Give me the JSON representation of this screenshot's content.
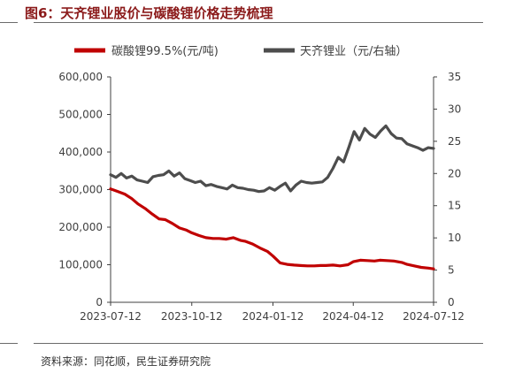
{
  "header": {
    "title": "图6：天齐锂业股价与碳酸锂价格走势梳理"
  },
  "footer": {
    "source": "资料来源：同花顺，民生证券研究院"
  },
  "colors": {
    "lithium_carbonate": "#C00000",
    "tianqi": "#4D4D4D",
    "title": "#8B1A1A"
  },
  "chart_data": {
    "type": "line",
    "title": "",
    "legend_position": "top",
    "grid": false,
    "x_ticks": [
      "2023-07-12",
      "2023-10-12",
      "2024-01-12",
      "2024-04-12",
      "2024-07-12"
    ],
    "xlim": [
      "2023-07-12",
      "2024-07-12"
    ],
    "y_left": {
      "lim": [
        0,
        600000
      ],
      "ticks": [
        "0",
        "100,000",
        "200,000",
        "300,000",
        "400,000",
        "500,000",
        "600,000"
      ]
    },
    "y_right": {
      "lim": [
        0,
        35
      ],
      "ticks": [
        "0",
        "5",
        "10",
        "15",
        "20",
        "25",
        "30",
        "35"
      ]
    },
    "series": [
      {
        "name": "碳酸锂99.5%(元/吨)",
        "axis": "left",
        "points": [
          [
            "2023-07-12",
            302000
          ],
          [
            "2023-07-20",
            295000
          ],
          [
            "2023-07-28",
            288000
          ],
          [
            "2023-08-05",
            276000
          ],
          [
            "2023-08-12",
            262000
          ],
          [
            "2023-08-20",
            250000
          ],
          [
            "2023-08-28",
            235000
          ],
          [
            "2023-09-05",
            222000
          ],
          [
            "2023-09-12",
            220000
          ],
          [
            "2023-09-20",
            210000
          ],
          [
            "2023-09-28",
            198000
          ],
          [
            "2023-10-06",
            192000
          ],
          [
            "2023-10-12",
            185000
          ],
          [
            "2023-10-20",
            178000
          ],
          [
            "2023-10-28",
            172000
          ],
          [
            "2023-11-05",
            170000
          ],
          [
            "2023-11-12",
            170000
          ],
          [
            "2023-11-20",
            168000
          ],
          [
            "2023-11-28",
            172000
          ],
          [
            "2023-12-06",
            165000
          ],
          [
            "2023-12-12",
            162000
          ],
          [
            "2023-12-20",
            155000
          ],
          [
            "2023-12-28",
            145000
          ],
          [
            "2024-01-06",
            135000
          ],
          [
            "2024-01-12",
            123000
          ],
          [
            "2024-01-20",
            105000
          ],
          [
            "2024-01-28",
            101000
          ],
          [
            "2024-02-05",
            99000
          ],
          [
            "2024-02-12",
            98000
          ],
          [
            "2024-02-20",
            97000
          ],
          [
            "2024-02-28",
            97000
          ],
          [
            "2024-03-06",
            98000
          ],
          [
            "2024-03-12",
            98000
          ],
          [
            "2024-03-20",
            99000
          ],
          [
            "2024-03-28",
            97000
          ],
          [
            "2024-04-06",
            100000
          ],
          [
            "2024-04-12",
            108000
          ],
          [
            "2024-04-20",
            112000
          ],
          [
            "2024-04-28",
            111000
          ],
          [
            "2024-05-06",
            110000
          ],
          [
            "2024-05-12",
            112000
          ],
          [
            "2024-05-20",
            111000
          ],
          [
            "2024-05-28",
            110000
          ],
          [
            "2024-06-06",
            106000
          ],
          [
            "2024-06-12",
            101000
          ],
          [
            "2024-06-20",
            97000
          ],
          [
            "2024-06-28",
            93000
          ],
          [
            "2024-07-06",
            91000
          ],
          [
            "2024-07-12",
            89000
          ]
        ]
      },
      {
        "name": "天齐锂业（元/右轴）",
        "axis": "right",
        "points": [
          [
            "2023-07-12",
            19.8
          ],
          [
            "2023-07-18",
            19.4
          ],
          [
            "2023-07-24",
            20.0
          ],
          [
            "2023-07-30",
            19.3
          ],
          [
            "2023-08-05",
            19.6
          ],
          [
            "2023-08-11",
            19.0
          ],
          [
            "2023-08-17",
            18.8
          ],
          [
            "2023-08-23",
            18.6
          ],
          [
            "2023-08-29",
            19.5
          ],
          [
            "2023-09-04",
            19.7
          ],
          [
            "2023-09-10",
            19.8
          ],
          [
            "2023-09-16",
            20.4
          ],
          [
            "2023-09-22",
            19.6
          ],
          [
            "2023-09-28",
            20.1
          ],
          [
            "2023-10-04",
            19.2
          ],
          [
            "2023-10-10",
            18.9
          ],
          [
            "2023-10-16",
            18.6
          ],
          [
            "2023-10-22",
            18.8
          ],
          [
            "2023-10-28",
            18.1
          ],
          [
            "2023-11-03",
            18.3
          ],
          [
            "2023-11-09",
            18.0
          ],
          [
            "2023-11-15",
            17.8
          ],
          [
            "2023-11-21",
            17.6
          ],
          [
            "2023-11-27",
            18.2
          ],
          [
            "2023-12-03",
            17.8
          ],
          [
            "2023-12-09",
            17.7
          ],
          [
            "2023-12-15",
            17.5
          ],
          [
            "2023-12-21",
            17.4
          ],
          [
            "2023-12-27",
            17.2
          ],
          [
            "2024-01-02",
            17.3
          ],
          [
            "2024-01-08",
            17.8
          ],
          [
            "2024-01-14",
            17.4
          ],
          [
            "2024-01-20",
            18.0
          ],
          [
            "2024-01-26",
            18.5
          ],
          [
            "2024-02-01",
            17.3
          ],
          [
            "2024-02-07",
            18.2
          ],
          [
            "2024-02-13",
            18.8
          ],
          [
            "2024-02-19",
            18.6
          ],
          [
            "2024-02-25",
            18.5
          ],
          [
            "2024-03-02",
            18.6
          ],
          [
            "2024-03-08",
            18.7
          ],
          [
            "2024-03-14",
            19.4
          ],
          [
            "2024-03-20",
            20.8
          ],
          [
            "2024-03-26",
            22.5
          ],
          [
            "2024-04-01",
            21.8
          ],
          [
            "2024-04-07",
            24.1
          ],
          [
            "2024-04-13",
            26.5
          ],
          [
            "2024-04-19",
            25.2
          ],
          [
            "2024-04-25",
            27.0
          ],
          [
            "2024-05-01",
            26.1
          ],
          [
            "2024-05-07",
            25.6
          ],
          [
            "2024-05-13",
            26.6
          ],
          [
            "2024-05-19",
            27.4
          ],
          [
            "2024-05-25",
            26.2
          ],
          [
            "2024-05-31",
            25.5
          ],
          [
            "2024-06-06",
            25.4
          ],
          [
            "2024-06-12",
            24.6
          ],
          [
            "2024-06-18",
            24.3
          ],
          [
            "2024-06-24",
            24.0
          ],
          [
            "2024-06-30",
            23.6
          ],
          [
            "2024-07-06",
            24.0
          ],
          [
            "2024-07-12",
            23.9
          ]
        ]
      }
    ]
  }
}
